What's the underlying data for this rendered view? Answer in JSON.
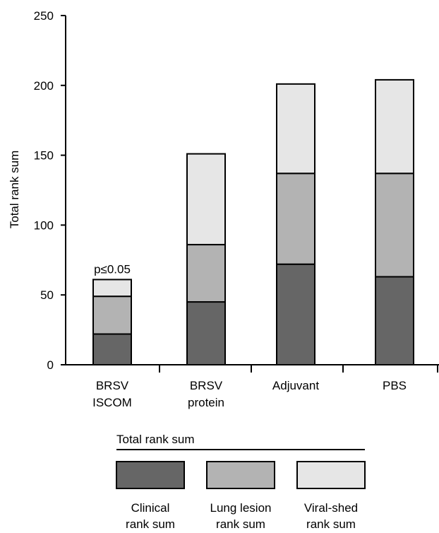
{
  "chart_data": {
    "type": "bar",
    "stacked": true,
    "categories": [
      [
        "BRSV",
        "ISCOM"
      ],
      [
        "BRSV",
        "protein"
      ],
      [
        "Adjuvant"
      ],
      [
        "PBS"
      ]
    ],
    "series": [
      {
        "name": "Clinical rank sum",
        "color": "#666666",
        "values": [
          22,
          45,
          72,
          63
        ]
      },
      {
        "name": "Lung lesion rank sum",
        "color": "#b3b3b3",
        "values": [
          27,
          41,
          65,
          74
        ]
      },
      {
        "name": "Viral-shed rank sum",
        "color": "#e6e6e6",
        "values": [
          12,
          65,
          64,
          67
        ]
      }
    ],
    "ylabel": "Total rank sum",
    "ylim": [
      0,
      250
    ],
    "yticks": [
      0,
      50,
      100,
      150,
      200,
      250
    ],
    "annotations": [
      {
        "category_index": 0,
        "text": "p≤0.05"
      }
    ],
    "legend": {
      "title": "Total rank sum",
      "entries": [
        [
          "Clinical",
          "rank sum"
        ],
        [
          "Lung lesion",
          "rank sum"
        ],
        [
          "Viral-shed",
          "rank sum"
        ]
      ],
      "placement": "bottom"
    },
    "grid": false
  }
}
